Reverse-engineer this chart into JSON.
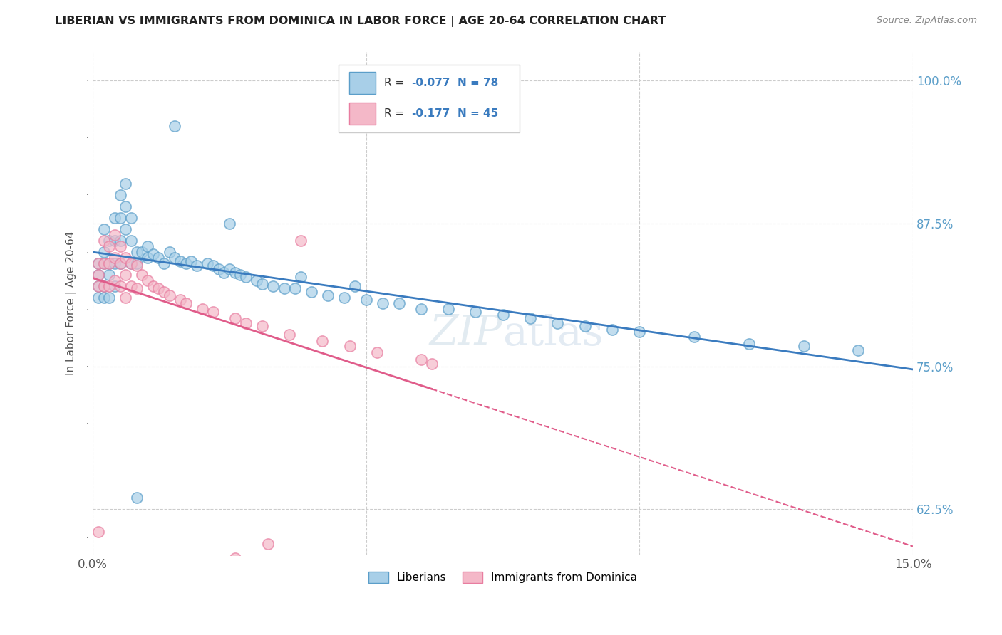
{
  "title": "LIBERIAN VS IMMIGRANTS FROM DOMINICA IN LABOR FORCE | AGE 20-64 CORRELATION CHART",
  "source": "Source: ZipAtlas.com",
  "ylabel_label": "In Labor Force | Age 20-64",
  "legend_label1": "Liberians",
  "legend_label2": "Immigrants from Dominica",
  "R1": -0.077,
  "N1": 78,
  "R2": -0.177,
  "N2": 45,
  "color_blue": "#a8cfe8",
  "color_pink": "#f4b8c8",
  "color_blue_edge": "#5b9ec9",
  "color_pink_edge": "#e87da0",
  "color_blue_line": "#3a7bbf",
  "color_pink_line": "#e05c8a",
  "xmin": 0.0,
  "xmax": 0.15,
  "ymin": 0.585,
  "ymax": 1.025,
  "yticks": [
    0.625,
    0.75,
    0.875,
    1.0
  ],
  "yticklabels": [
    "62.5%",
    "75.0%",
    "87.5%",
    "100.0%"
  ],
  "xticks": [
    0.0,
    0.05,
    0.1,
    0.15
  ],
  "xticklabels_show": [
    "0.0%",
    "",
    "",
    "15.0%"
  ],
  "blue_x": [
    0.001,
    0.001,
    0.001,
    0.001,
    0.002,
    0.002,
    0.002,
    0.002,
    0.002,
    0.003,
    0.003,
    0.003,
    0.003,
    0.004,
    0.004,
    0.004,
    0.004,
    0.005,
    0.005,
    0.005,
    0.005,
    0.006,
    0.006,
    0.006,
    0.007,
    0.007,
    0.007,
    0.008,
    0.008,
    0.009,
    0.01,
    0.01,
    0.011,
    0.012,
    0.013,
    0.014,
    0.015,
    0.016,
    0.017,
    0.018,
    0.019,
    0.021,
    0.022,
    0.023,
    0.024,
    0.025,
    0.026,
    0.027,
    0.028,
    0.03,
    0.031,
    0.033,
    0.035,
    0.037,
    0.04,
    0.043,
    0.046,
    0.05,
    0.053,
    0.056,
    0.06,
    0.065,
    0.07,
    0.075,
    0.08,
    0.085,
    0.09,
    0.095,
    0.1,
    0.11,
    0.12,
    0.13,
    0.14,
    0.048,
    0.038,
    0.025,
    0.015,
    0.008
  ],
  "blue_y": [
    0.83,
    0.84,
    0.82,
    0.81,
    0.87,
    0.85,
    0.84,
    0.82,
    0.81,
    0.86,
    0.84,
    0.83,
    0.81,
    0.88,
    0.86,
    0.84,
    0.82,
    0.9,
    0.88,
    0.86,
    0.84,
    0.91,
    0.89,
    0.87,
    0.88,
    0.86,
    0.84,
    0.85,
    0.84,
    0.85,
    0.855,
    0.845,
    0.848,
    0.845,
    0.84,
    0.85,
    0.845,
    0.842,
    0.84,
    0.842,
    0.838,
    0.84,
    0.838,
    0.835,
    0.832,
    0.835,
    0.832,
    0.83,
    0.828,
    0.825,
    0.822,
    0.82,
    0.818,
    0.818,
    0.815,
    0.812,
    0.81,
    0.808,
    0.805,
    0.805,
    0.8,
    0.8,
    0.798,
    0.795,
    0.792,
    0.788,
    0.785,
    0.782,
    0.78,
    0.776,
    0.77,
    0.768,
    0.764,
    0.82,
    0.828,
    0.875,
    0.96,
    0.635
  ],
  "pink_x": [
    0.001,
    0.001,
    0.001,
    0.002,
    0.002,
    0.002,
    0.003,
    0.003,
    0.003,
    0.004,
    0.004,
    0.004,
    0.005,
    0.005,
    0.005,
    0.006,
    0.006,
    0.006,
    0.007,
    0.007,
    0.008,
    0.008,
    0.009,
    0.01,
    0.011,
    0.012,
    0.013,
    0.014,
    0.016,
    0.017,
    0.02,
    0.022,
    0.026,
    0.028,
    0.031,
    0.036,
    0.042,
    0.047,
    0.052,
    0.06,
    0.062,
    0.038,
    0.001,
    0.026,
    0.032
  ],
  "pink_y": [
    0.84,
    0.83,
    0.82,
    0.86,
    0.84,
    0.82,
    0.855,
    0.84,
    0.82,
    0.865,
    0.845,
    0.825,
    0.855,
    0.84,
    0.82,
    0.845,
    0.83,
    0.81,
    0.84,
    0.82,
    0.838,
    0.818,
    0.83,
    0.825,
    0.82,
    0.818,
    0.815,
    0.812,
    0.808,
    0.805,
    0.8,
    0.798,
    0.792,
    0.788,
    0.785,
    0.778,
    0.772,
    0.768,
    0.762,
    0.756,
    0.752,
    0.86,
    0.605,
    0.582,
    0.595
  ]
}
